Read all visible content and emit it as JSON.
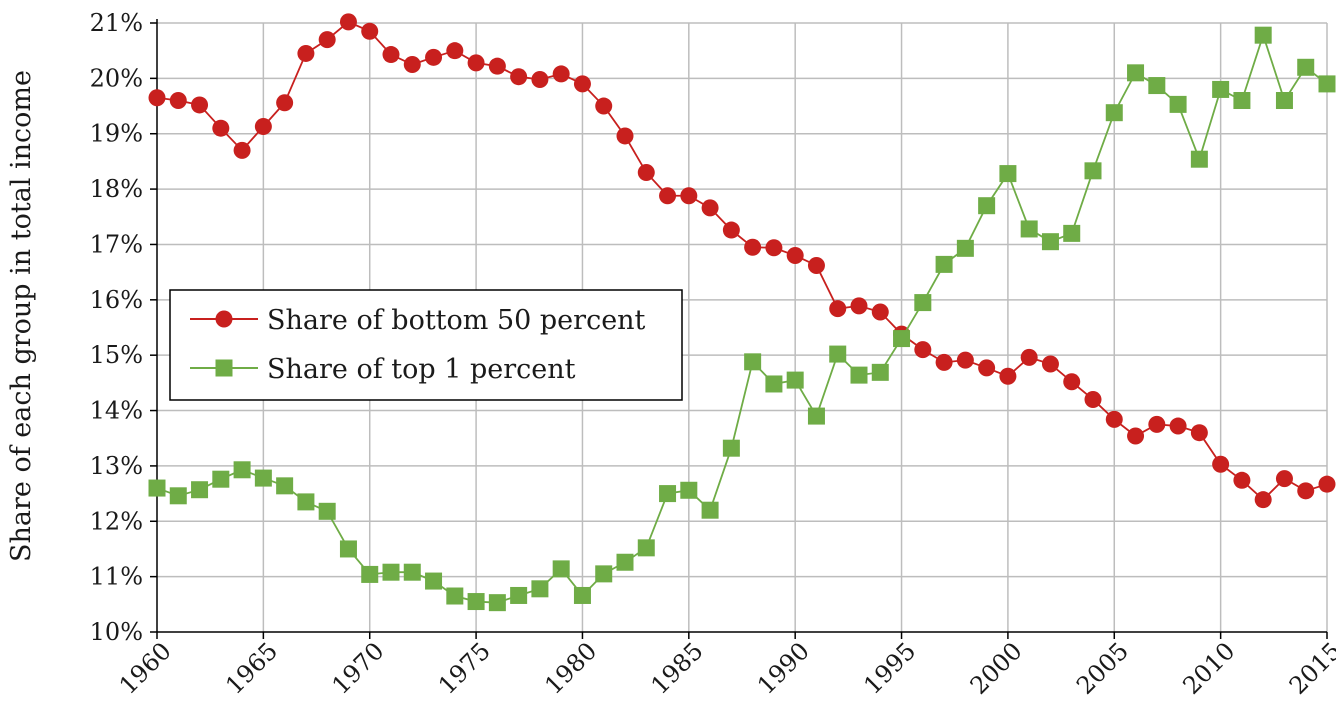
{
  "chart_data": {
    "type": "line",
    "title": "",
    "xlabel": "",
    "ylabel": "Share of each group in total income",
    "xlim": [
      1960,
      2015
    ],
    "ylim": [
      10,
      21
    ],
    "x_ticks": [
      "1960",
      "1965",
      "1970",
      "1975",
      "1980",
      "1985",
      "1990",
      "1995",
      "2000",
      "2005",
      "2010",
      "2015"
    ],
    "y_ticks": [
      "10%",
      "11%",
      "12%",
      "13%",
      "14%",
      "15%",
      "16%",
      "17%",
      "18%",
      "19%",
      "20%",
      "21%"
    ],
    "grid": true,
    "legend_position": "center-left",
    "x": [
      1960,
      1961,
      1962,
      1963,
      1964,
      1965,
      1966,
      1967,
      1968,
      1969,
      1970,
      1971,
      1972,
      1973,
      1974,
      1975,
      1976,
      1977,
      1978,
      1979,
      1980,
      1981,
      1982,
      1983,
      1984,
      1985,
      1986,
      1987,
      1988,
      1989,
      1990,
      1991,
      1992,
      1993,
      1994,
      1995,
      1996,
      1997,
      1998,
      1999,
      2000,
      2001,
      2002,
      2003,
      2004,
      2005,
      2006,
      2007,
      2008,
      2009,
      2010,
      2011,
      2012,
      2013,
      2014,
      2015
    ],
    "series": [
      {
        "name": "Share of bottom 50 percent",
        "color": "#c8201e",
        "marker": "circle",
        "values": [
          19.65,
          19.6,
          19.52,
          19.1,
          18.7,
          19.13,
          19.56,
          20.45,
          20.7,
          21.02,
          20.85,
          20.43,
          20.25,
          20.38,
          20.5,
          20.28,
          20.22,
          20.03,
          19.98,
          20.08,
          19.9,
          19.5,
          18.96,
          18.3,
          17.88,
          17.88,
          17.66,
          17.26,
          16.95,
          16.94,
          16.8,
          16.62,
          15.84,
          15.89,
          15.78,
          15.38,
          15.1,
          14.87,
          14.91,
          14.77,
          14.62,
          14.96,
          14.84,
          14.52,
          14.2,
          13.84,
          13.54,
          13.75,
          13.72,
          13.6,
          13.03,
          12.74,
          12.39,
          12.77,
          12.55,
          12.67
        ]
      },
      {
        "name": "Share of top 1 percent",
        "color": "#6fac46",
        "marker": "square",
        "values": [
          12.6,
          12.46,
          12.57,
          12.76,
          12.93,
          12.78,
          12.64,
          12.35,
          12.18,
          11.5,
          11.04,
          11.08,
          11.08,
          10.92,
          10.65,
          10.55,
          10.53,
          10.66,
          10.78,
          11.14,
          10.66,
          11.05,
          11.26,
          11.52,
          12.5,
          12.56,
          12.2,
          13.32,
          14.88,
          14.48,
          14.55,
          13.9,
          15.02,
          14.64,
          14.69,
          15.3,
          15.95,
          16.64,
          16.93,
          17.7,
          18.28,
          17.28,
          17.05,
          17.2,
          18.33,
          19.38,
          20.1,
          19.87,
          19.53,
          18.54,
          19.8,
          19.6,
          20.78,
          19.6,
          20.2,
          19.9
        ]
      }
    ]
  }
}
